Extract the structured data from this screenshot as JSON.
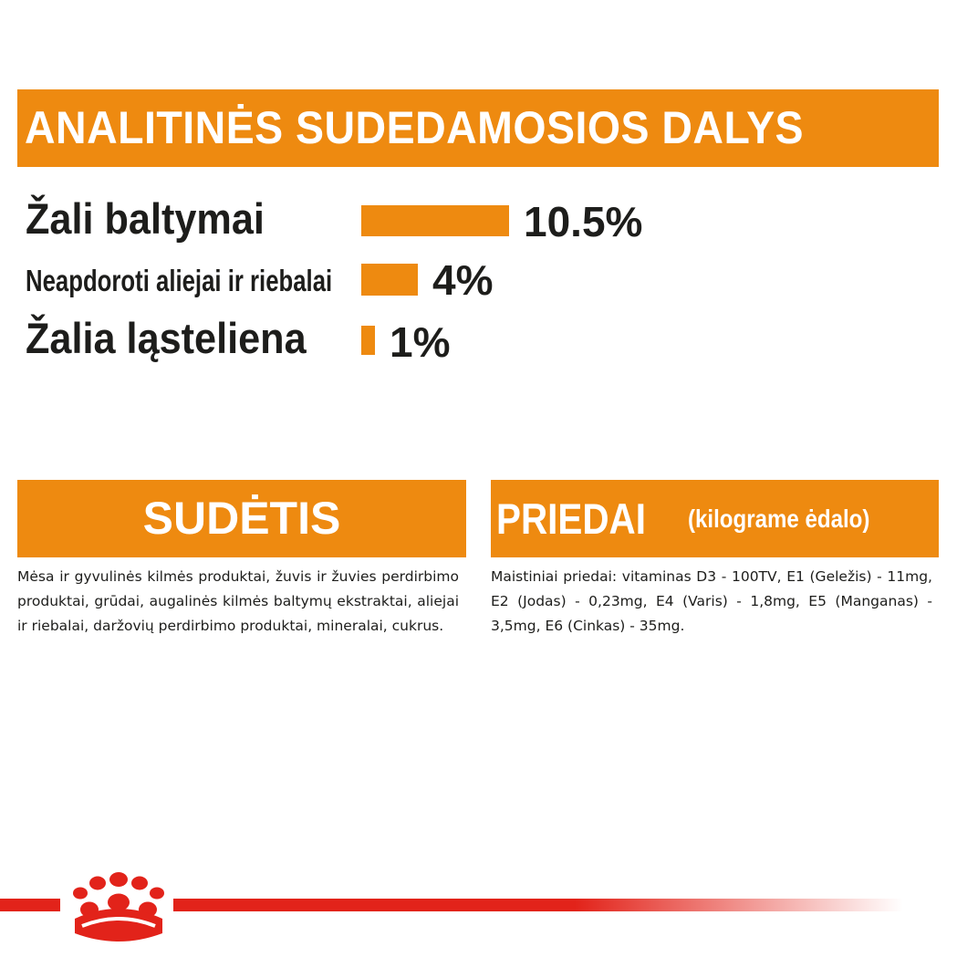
{
  "header": {
    "title": "ANALITINĖS SUDEDAMOSIOS DALYS"
  },
  "nutrients": [
    {
      "label": "Žali baltymai",
      "value_text": "10.5%",
      "value": 10.5
    },
    {
      "label": "Neapdoroti aliejai ir riebalai",
      "value_text": "4%",
      "value": 4
    },
    {
      "label": "Žalia ląsteliena",
      "value_text": "1%",
      "value": 1
    }
  ],
  "composition": {
    "title": "SUDĖTIS",
    "text": "Mėsa ir gyvulinės kilmės produktai, žuvis ir žuvies perdirbimo produktai, grūdai, augalinės kilmės baltymų ekstraktai, aliejai ir riebalai, daržovių perdirbimo produktai, mineralai, cukrus."
  },
  "additives": {
    "title": "PRIEDAI",
    "subtitle": "(kilograme ėdalo)",
    "text": "Maistiniai priedai: vitaminas D3 - 100TV, E1 (Geležis) - 11mg, E2 (Jodas) - 0,23mg, E4 (Varis) - 1,8mg, E5 (Manganas) - 3,5mg, E6 (Cinkas) - 35mg."
  },
  "colors": {
    "accent": "#ee8a10",
    "brand_red": "#e2231a",
    "text": "#1d1d1b"
  },
  "icons": {
    "logo": "royal-canin-crown-icon"
  }
}
